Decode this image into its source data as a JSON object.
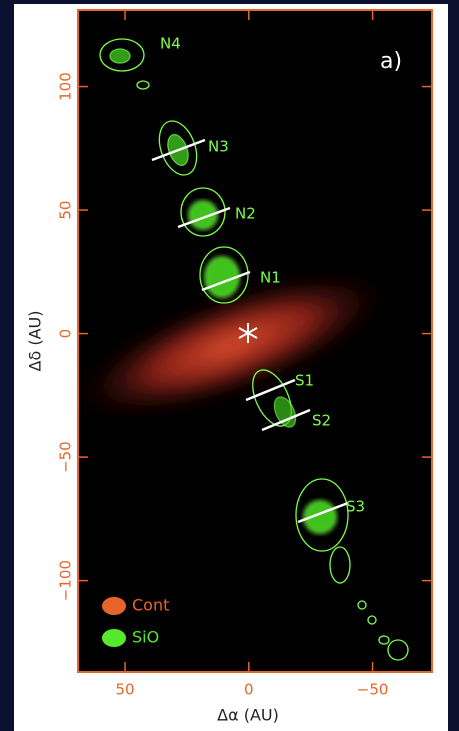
{
  "chart_data": {
    "type": "image",
    "panel_label": "a)",
    "x_label": "Δα (AU)",
    "y_label": "Δδ (AU)",
    "xlim": [
      69,
      -74
    ],
    "ylim": [
      -137,
      131
    ],
    "xticks": [
      50,
      0,
      {
        "value": -50,
        "label": "−50"
      }
    ],
    "yticks": [
      100,
      50,
      0,
      {
        "value": -50,
        "label": "−50"
      },
      {
        "value": -100,
        "label": "−100"
      }
    ],
    "knots": [
      "N4",
      "N3",
      "N2",
      "N1",
      "S1",
      "S2",
      "S3"
    ],
    "legend": [
      {
        "name": "Cont",
        "color": "#e8652a"
      },
      {
        "name": "SiO",
        "color": "#55e82c"
      }
    ]
  }
}
